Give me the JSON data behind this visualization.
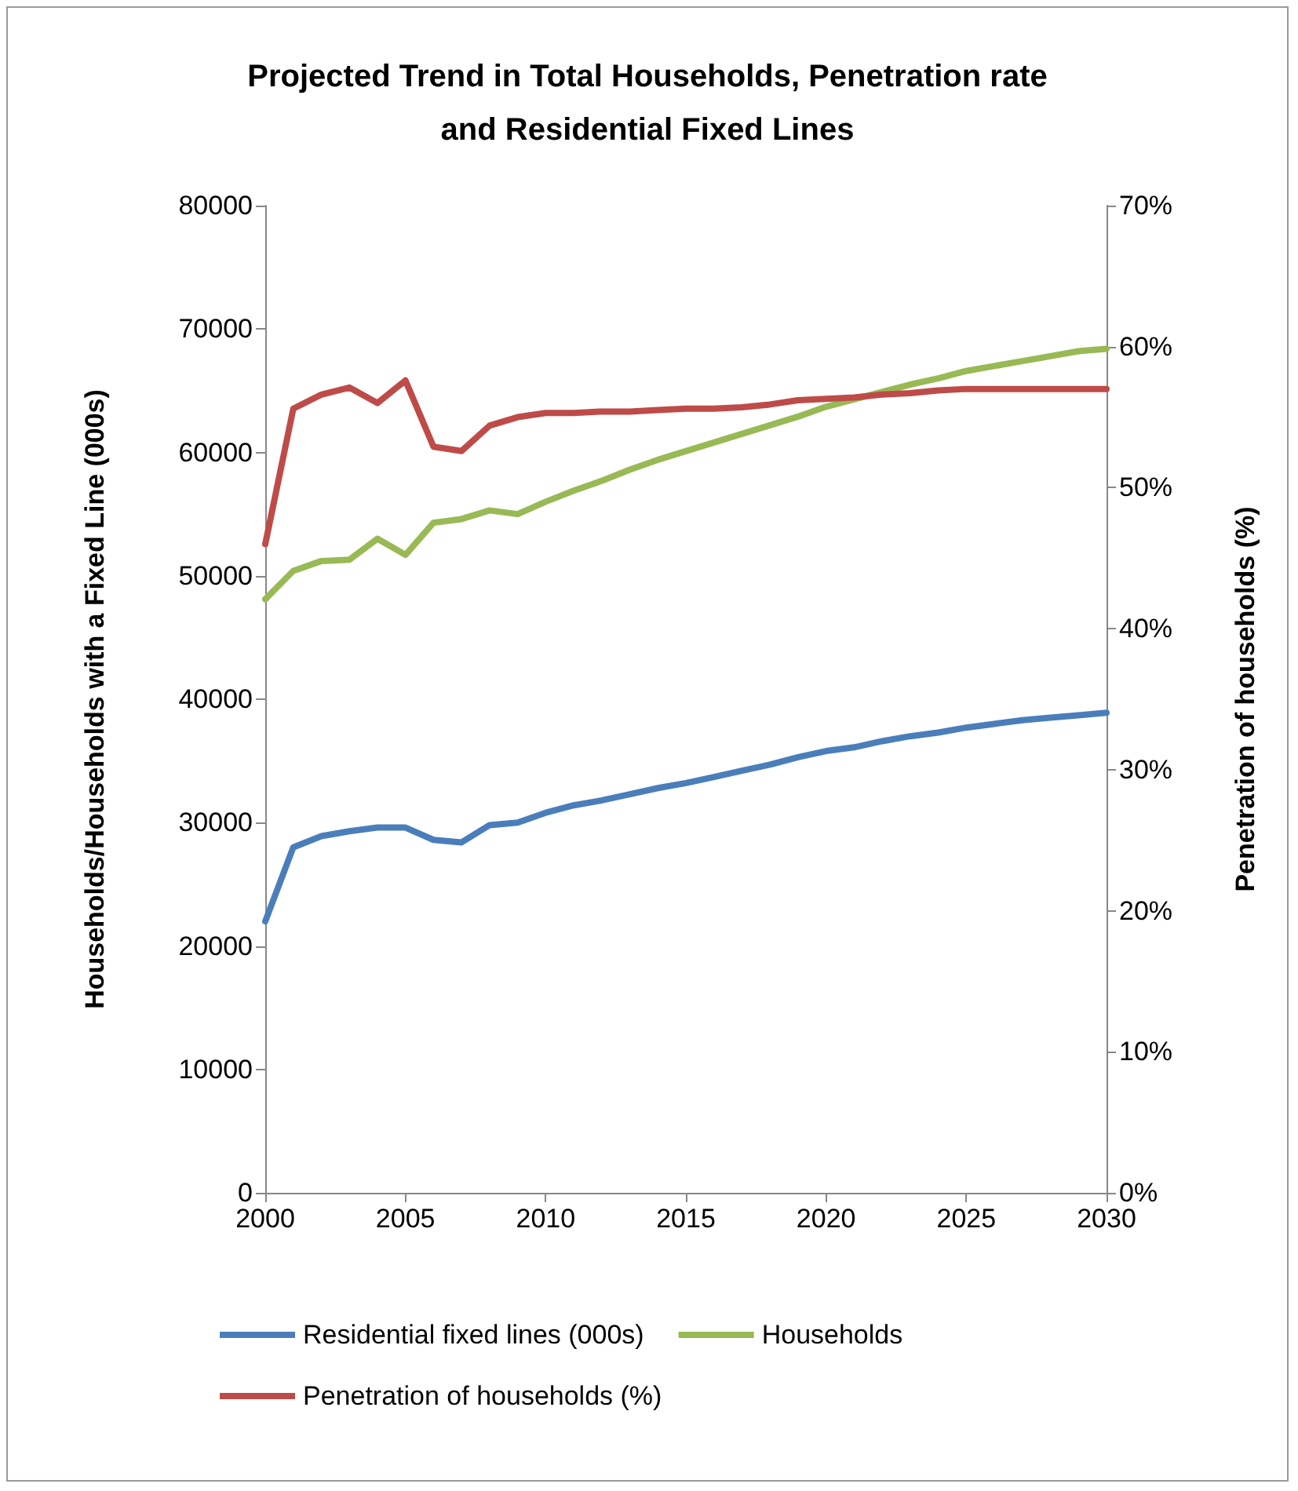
{
  "chart_data": {
    "type": "line",
    "title": "Projected Trend in Total Households, Penetration rate\nand Residential Fixed Lines",
    "ylabel": "Households/Households with a Fixed Line (000s)",
    "y2label": "Penetration of households (%)",
    "x": [
      2000,
      2001,
      2002,
      2003,
      2004,
      2005,
      2006,
      2007,
      2008,
      2009,
      2010,
      2011,
      2012,
      2013,
      2014,
      2015,
      2016,
      2017,
      2018,
      2019,
      2020,
      2021,
      2022,
      2023,
      2024,
      2025,
      2026,
      2027,
      2028,
      2029,
      2030
    ],
    "xlim": [
      2000,
      2030
    ],
    "xticks": [
      2000,
      2005,
      2010,
      2015,
      2020,
      2025,
      2030
    ],
    "ylim": [
      0,
      80000
    ],
    "yticks": [
      0,
      10000,
      20000,
      30000,
      40000,
      50000,
      60000,
      70000,
      80000
    ],
    "y2lim": [
      0,
      70
    ],
    "y2ticks": [
      {
        "value": 0,
        "label": "0%"
      },
      {
        "value": 10,
        "label": "10%"
      },
      {
        "value": 20,
        "label": "20%"
      },
      {
        "value": 30,
        "label": "30%"
      },
      {
        "value": 40,
        "label": "40%"
      },
      {
        "value": 50,
        "label": "50%"
      },
      {
        "value": 60,
        "label": "60%"
      },
      {
        "value": 70,
        "label": "70%"
      }
    ],
    "series": [
      {
        "name": "Residential fixed lines (000s)",
        "color": "#4a7ebb",
        "values": [
          22000,
          28000,
          28900,
          29300,
          29600,
          29600,
          28600,
          28400,
          29800,
          30000,
          30800,
          31400,
          31800,
          32300,
          32800,
          33200,
          33700,
          34200,
          34700,
          35300,
          35800,
          36100,
          36600,
          37000,
          37300,
          37700,
          38000,
          38300,
          38500,
          38700,
          38900
        ]
      },
      {
        "name": "Households",
        "color": "#98b954",
        "values": [
          48100,
          50400,
          51200,
          51300,
          53000,
          51700,
          54300,
          54600,
          55300,
          55000,
          56000,
          56900,
          57700,
          58600,
          59400,
          60100,
          60800,
          61500,
          62200,
          62900,
          63700,
          64300,
          64900,
          65500,
          66000,
          66600,
          67000,
          67400,
          67800,
          68200,
          68400
        ]
      },
      {
        "name": "Penetration of households (%)",
        "color": "#be4b48",
        "axis": "y2",
        "values": [
          46,
          55.6,
          56.6,
          57.1,
          56,
          57.6,
          52.9,
          52.6,
          54.4,
          55,
          55.3,
          55.3,
          55.4,
          55.4,
          55.5,
          55.6,
          55.6,
          55.7,
          55.9,
          56.2,
          56.3,
          56.4,
          56.6,
          56.7,
          56.9,
          57,
          57,
          57,
          57,
          57,
          57
        ]
      }
    ],
    "grid": false,
    "legend": "bottom",
    "marker": "none",
    "line_style": "solid"
  }
}
